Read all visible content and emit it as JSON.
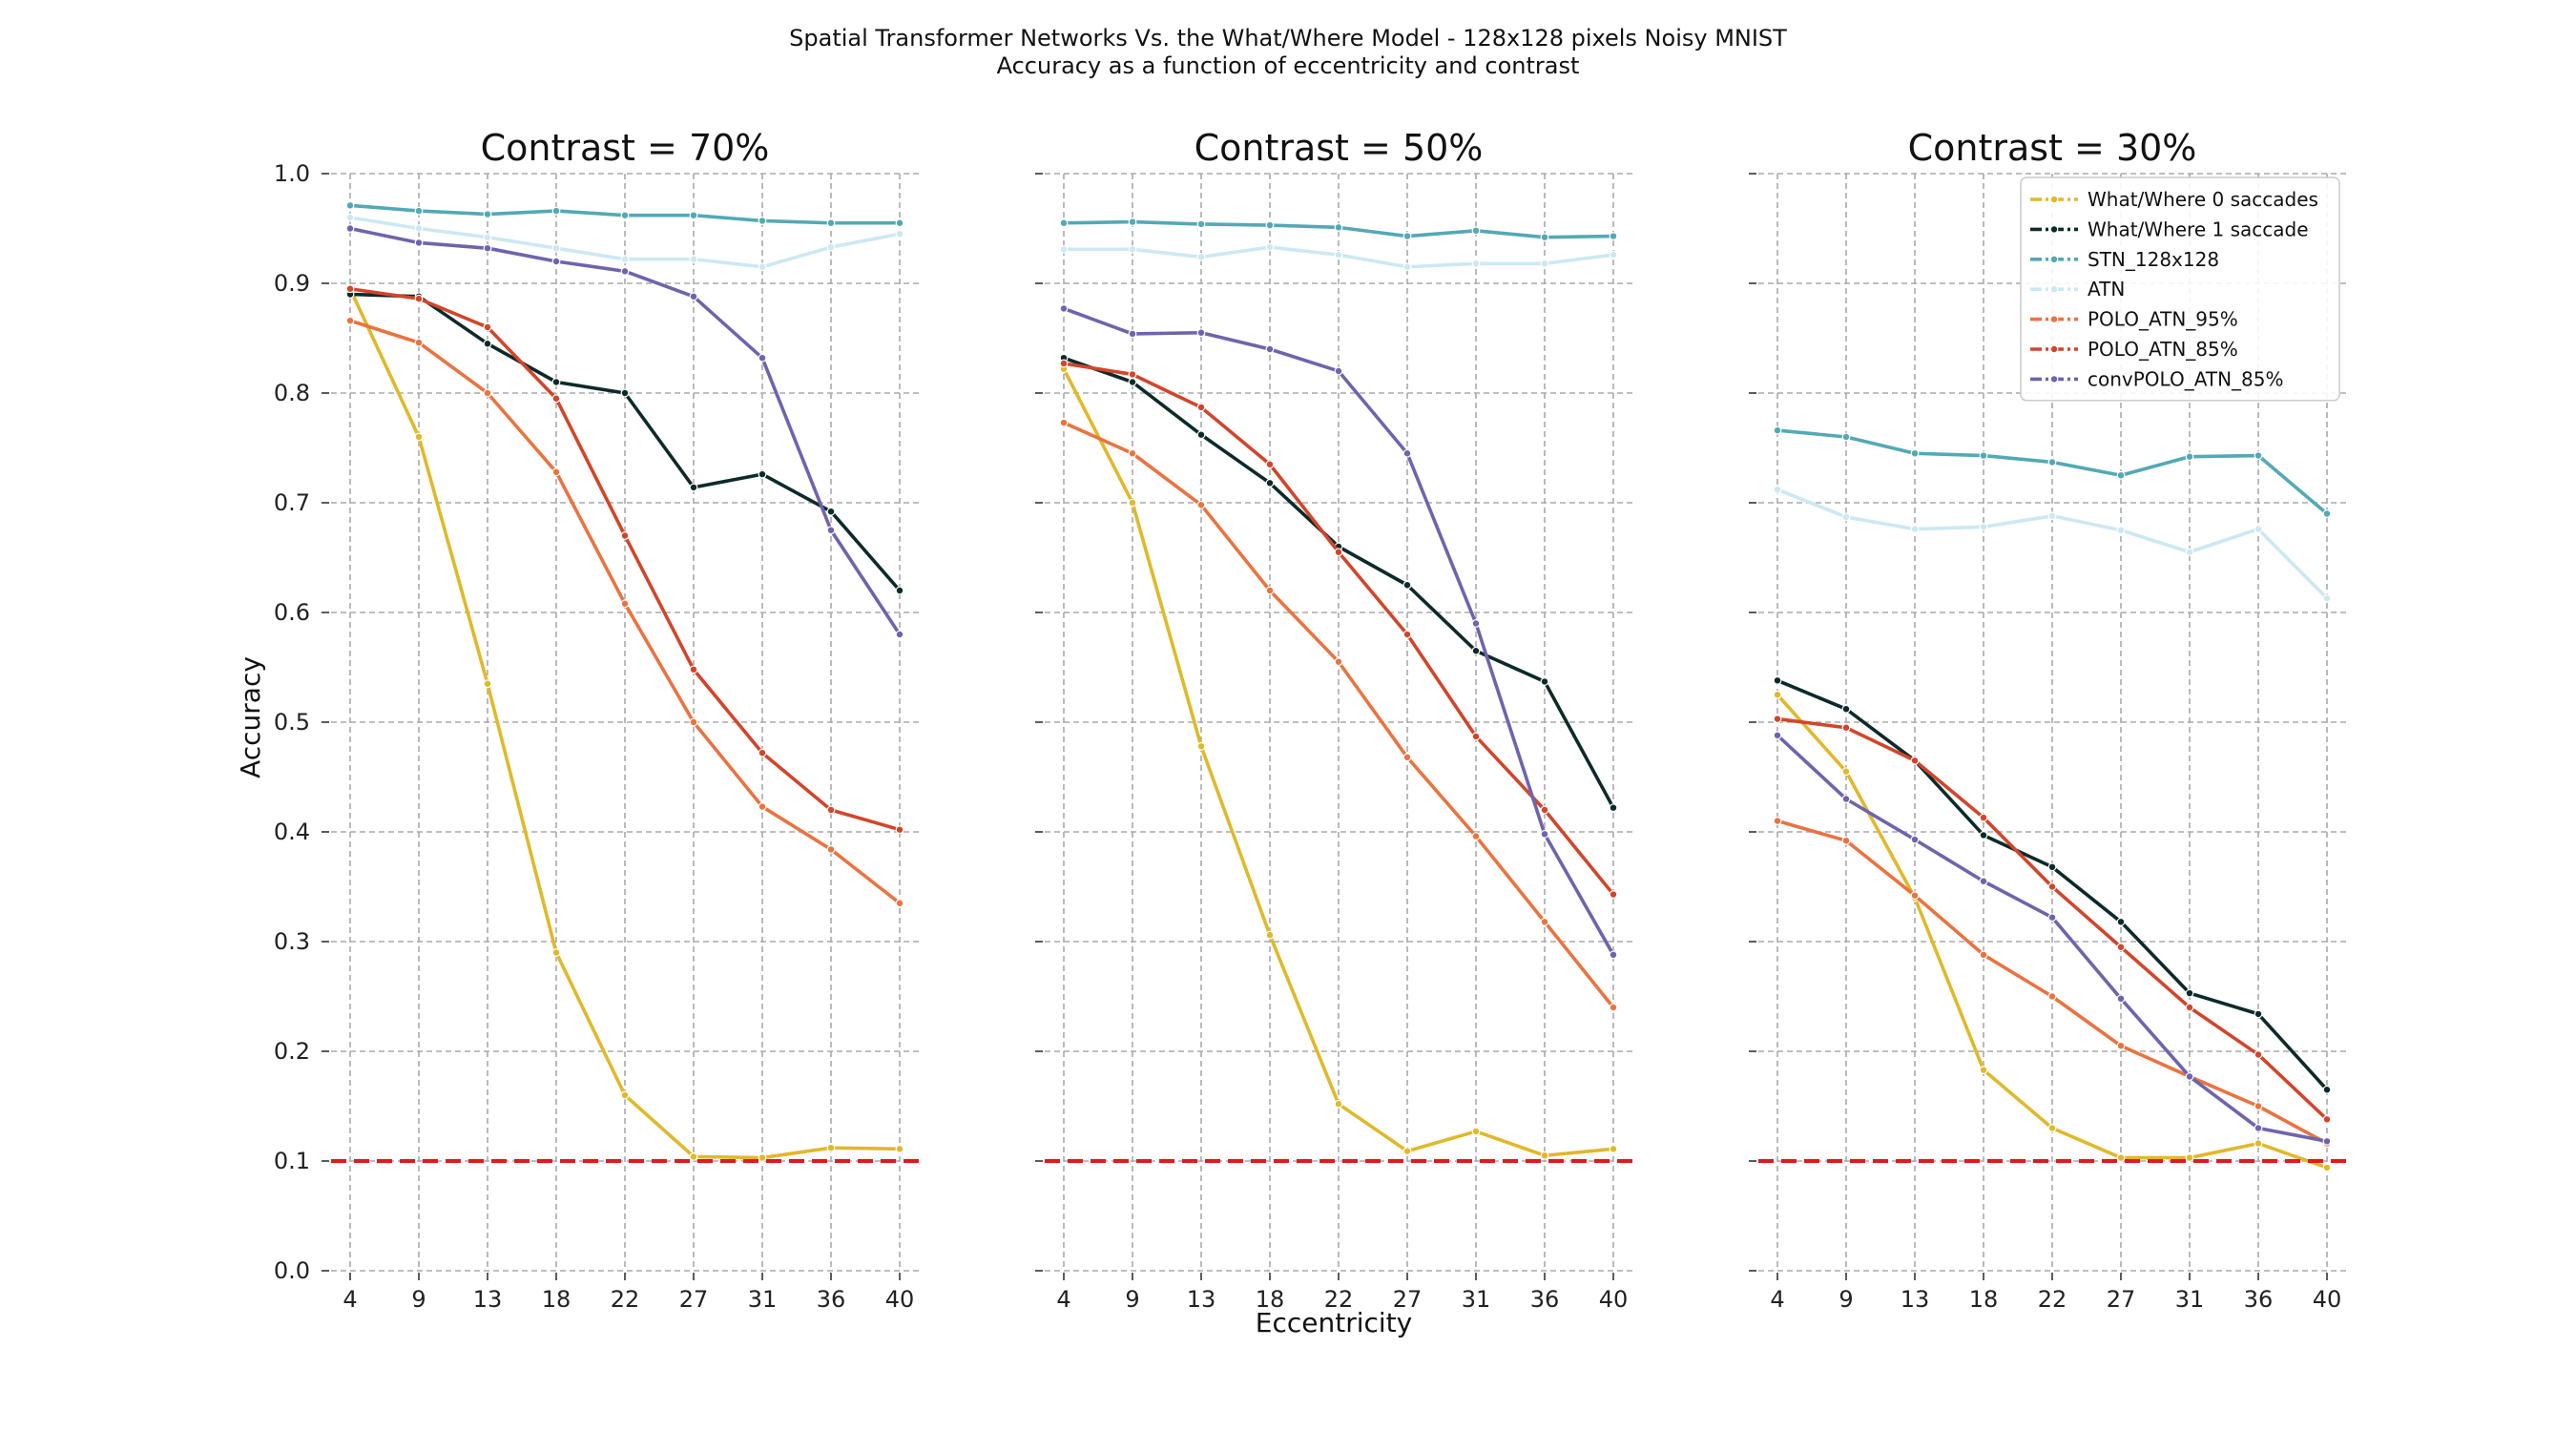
{
  "figure": {
    "title_line1": "Spatial Transformer Networks Vs. the What/Where Model - 128x128 pixels Noisy MNIST",
    "title_line2": "Accuracy as a function of eccentricity and contrast",
    "xlabel": "Eccentricity",
    "ylabel": "Accuracy"
  },
  "chart_data": [
    {
      "type": "line",
      "title": "Contrast = 70%",
      "x": [
        4,
        9,
        13,
        18,
        22,
        27,
        31,
        36,
        40
      ],
      "ylim": [
        0,
        1
      ],
      "yticks": [
        "0.0",
        "0.1",
        "0.2",
        "0.3",
        "0.4",
        "0.5",
        "0.6",
        "0.7",
        "0.8",
        "0.9",
        "1.0"
      ],
      "grid": true,
      "reference_line": 0.1,
      "series": [
        {
          "name": "What/Where 0 saccades",
          "color": "#e0b92a",
          "values": [
            0.895,
            0.76,
            0.535,
            0.29,
            0.16,
            0.104,
            0.103,
            0.112,
            0.111
          ]
        },
        {
          "name": "What/Where 1 saccade",
          "color": "#0d2a2a",
          "values": [
            0.89,
            0.888,
            0.845,
            0.81,
            0.8,
            0.714,
            0.726,
            0.692,
            0.62
          ]
        },
        {
          "name": "STN_128x128",
          "color": "#53a9b5",
          "values": [
            0.971,
            0.966,
            0.963,
            0.966,
            0.962,
            0.962,
            0.957,
            0.955,
            0.955
          ]
        },
        {
          "name": "ATN",
          "color": "#cde8f3",
          "values": [
            0.96,
            0.95,
            0.942,
            0.932,
            0.922,
            0.922,
            0.915,
            0.933,
            0.945
          ]
        },
        {
          "name": "POLO_ATN_95%",
          "color": "#ea7340",
          "values": [
            0.866,
            0.846,
            0.8,
            0.728,
            0.608,
            0.5,
            0.423,
            0.384,
            0.335
          ]
        },
        {
          "name": "POLO_ATN_85%",
          "color": "#d2452a",
          "values": [
            0.895,
            0.886,
            0.86,
            0.795,
            0.67,
            0.548,
            0.472,
            0.42,
            0.402
          ]
        },
        {
          "name": "convPOLO_ATN_85%",
          "color": "#6e64ad",
          "values": [
            0.95,
            0.937,
            0.932,
            0.92,
            0.911,
            0.888,
            0.832,
            0.675,
            0.58
          ]
        }
      ]
    },
    {
      "type": "line",
      "title": "Contrast = 50%",
      "x": [
        4,
        9,
        13,
        18,
        22,
        27,
        31,
        36,
        40
      ],
      "ylim": [
        0,
        1
      ],
      "grid": true,
      "reference_line": 0.1,
      "series": [
        {
          "name": "What/Where 0 saccades",
          "color": "#e0b92a",
          "values": [
            0.822,
            0.7,
            0.478,
            0.306,
            0.152,
            0.109,
            0.127,
            0.105,
            0.111
          ]
        },
        {
          "name": "What/Where 1 saccade",
          "color": "#0d2a2a",
          "values": [
            0.832,
            0.81,
            0.762,
            0.718,
            0.66,
            0.625,
            0.565,
            0.537,
            0.422
          ]
        },
        {
          "name": "STN_128x128",
          "color": "#53a9b5",
          "values": [
            0.955,
            0.956,
            0.954,
            0.953,
            0.951,
            0.943,
            0.948,
            0.942,
            0.943
          ]
        },
        {
          "name": "ATN",
          "color": "#cde8f3",
          "values": [
            0.931,
            0.931,
            0.924,
            0.933,
            0.926,
            0.915,
            0.918,
            0.918,
            0.926
          ]
        },
        {
          "name": "POLO_ATN_95%",
          "color": "#ea7340",
          "values": [
            0.773,
            0.745,
            0.698,
            0.62,
            0.555,
            0.468,
            0.396,
            0.318,
            0.24
          ]
        },
        {
          "name": "POLO_ATN_85%",
          "color": "#d2452a",
          "values": [
            0.827,
            0.817,
            0.787,
            0.735,
            0.655,
            0.58,
            0.487,
            0.42,
            0.343
          ]
        },
        {
          "name": "convPOLO_ATN_85%",
          "color": "#6e64ad",
          "values": [
            0.877,
            0.854,
            0.855,
            0.84,
            0.82,
            0.745,
            0.59,
            0.398,
            0.288
          ]
        }
      ]
    },
    {
      "type": "line",
      "title": "Contrast = 30%",
      "x": [
        4,
        9,
        13,
        18,
        22,
        27,
        31,
        36,
        40
      ],
      "ylim": [
        0,
        1
      ],
      "grid": true,
      "reference_line": 0.1,
      "legend": "upper-right",
      "series": [
        {
          "name": "What/Where 0 saccades",
          "color": "#e0b92a",
          "values": [
            0.525,
            0.455,
            0.34,
            0.183,
            0.13,
            0.103,
            0.103,
            0.116,
            0.094
          ]
        },
        {
          "name": "What/Where 1 saccade",
          "color": "#0d2a2a",
          "values": [
            0.538,
            0.512,
            0.465,
            0.397,
            0.368,
            0.318,
            0.253,
            0.234,
            0.165
          ]
        },
        {
          "name": "STN_128x128",
          "color": "#53a9b5",
          "values": [
            0.766,
            0.76,
            0.745,
            0.743,
            0.737,
            0.725,
            0.742,
            0.743,
            0.69
          ]
        },
        {
          "name": "ATN",
          "color": "#cde8f3",
          "values": [
            0.712,
            0.687,
            0.676,
            0.678,
            0.688,
            0.675,
            0.655,
            0.676,
            0.613
          ]
        },
        {
          "name": "POLO_ATN_95%",
          "color": "#ea7340",
          "values": [
            0.41,
            0.392,
            0.342,
            0.288,
            0.25,
            0.205,
            0.177,
            0.15,
            0.116
          ]
        },
        {
          "name": "POLO_ATN_85%",
          "color": "#d2452a",
          "values": [
            0.503,
            0.495,
            0.465,
            0.413,
            0.35,
            0.295,
            0.24,
            0.197,
            0.138
          ]
        },
        {
          "name": "convPOLO_ATN_85%",
          "color": "#6e64ad",
          "values": [
            0.488,
            0.43,
            0.393,
            0.355,
            0.322,
            0.248,
            0.177,
            0.13,
            0.118
          ]
        }
      ]
    }
  ]
}
